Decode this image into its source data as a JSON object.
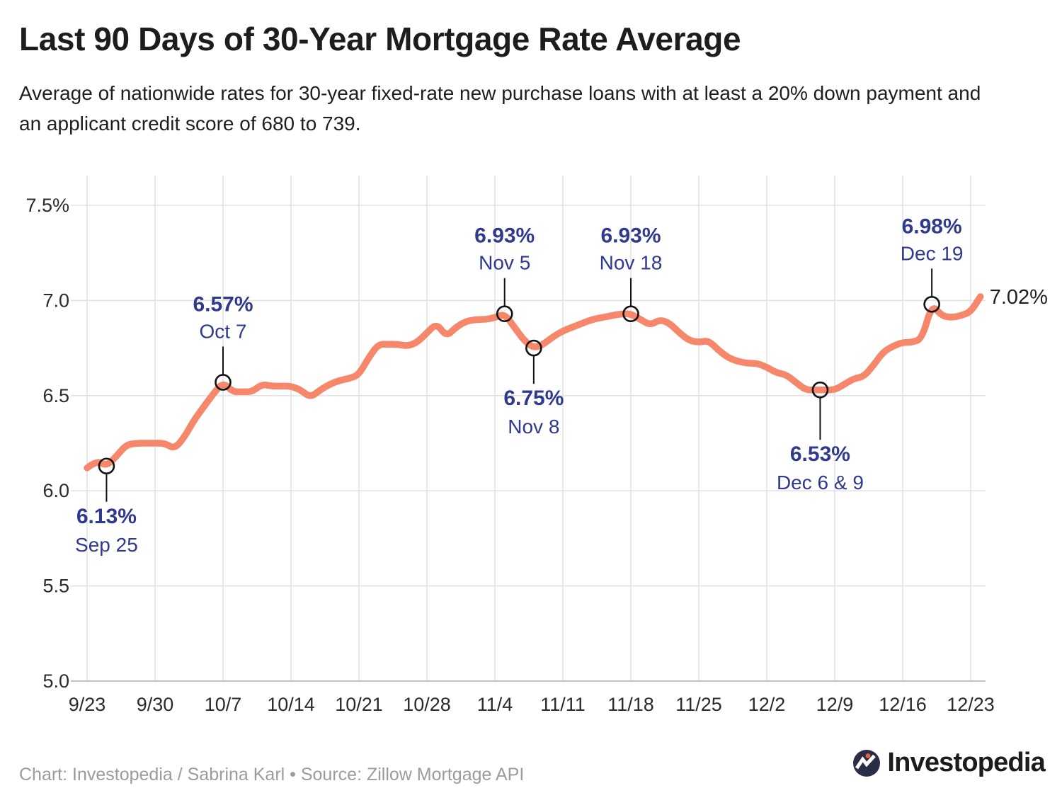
{
  "header": {
    "title": "Last 90 Days of 30-Year Mortgage Rate Average",
    "subtitle": "Average of nationwide rates for 30-year fixed-rate new purchase loans with at least a 20% down payment and an applicant credit score of 680 to 739."
  },
  "chart_data": {
    "type": "line",
    "title": "Last 90 Days of 30-Year Mortgage Rate Average",
    "unit": "%",
    "ylim": [
      5.0,
      7.5
    ],
    "grid": true,
    "y_ticks": [
      {
        "value": 5.0,
        "label": "5.0"
      },
      {
        "value": 5.5,
        "label": "5.5"
      },
      {
        "value": 6.0,
        "label": "6.0"
      },
      {
        "value": 6.5,
        "label": "6.5"
      },
      {
        "value": 7.0,
        "label": "7.0"
      },
      {
        "value": 7.5,
        "label": "7.5%"
      }
    ],
    "x_ticks": [
      "9/23",
      "9/30",
      "10/7",
      "10/14",
      "10/21",
      "10/28",
      "11/4",
      "11/11",
      "11/18",
      "11/25",
      "12/2",
      "12/9",
      "12/16",
      "12/23"
    ],
    "series": [
      {
        "name": "30-year mortgage rate average",
        "color": "#F6876B",
        "dates": [
          "9/23",
          "9/24",
          "9/25",
          "9/26",
          "9/27",
          "9/28",
          "9/29",
          "9/30",
          "10/1",
          "10/2",
          "10/3",
          "10/4",
          "10/5",
          "10/6",
          "10/7",
          "10/8",
          "10/9",
          "10/10",
          "10/11",
          "10/12",
          "10/13",
          "10/14",
          "10/15",
          "10/16",
          "10/17",
          "10/18",
          "10/19",
          "10/20",
          "10/21",
          "10/22",
          "10/23",
          "10/24",
          "10/25",
          "10/26",
          "10/27",
          "10/28",
          "10/29",
          "10/30",
          "10/31",
          "11/1",
          "11/2",
          "11/3",
          "11/4",
          "11/5",
          "11/6",
          "11/7",
          "11/8",
          "11/9",
          "11/10",
          "11/11",
          "11/12",
          "11/13",
          "11/14",
          "11/15",
          "11/16",
          "11/17",
          "11/18",
          "11/19",
          "11/20",
          "11/21",
          "11/22",
          "11/23",
          "11/24",
          "11/25",
          "11/26",
          "11/27",
          "11/28",
          "11/29",
          "11/30",
          "12/1",
          "12/2",
          "12/3",
          "12/4",
          "12/5",
          "12/6",
          "12/7",
          "12/8",
          "12/9",
          "12/10",
          "12/11",
          "12/12",
          "12/13",
          "12/14",
          "12/15",
          "12/16",
          "12/17",
          "12/18",
          "12/19",
          "12/20",
          "12/21",
          "12/22",
          "12/23",
          "12/24"
        ],
        "values": [
          6.12,
          6.16,
          6.13,
          6.18,
          6.24,
          6.25,
          6.25,
          6.25,
          6.25,
          6.22,
          6.28,
          6.37,
          6.44,
          6.51,
          6.57,
          6.52,
          6.52,
          6.52,
          6.56,
          6.55,
          6.55,
          6.55,
          6.53,
          6.49,
          6.53,
          6.56,
          6.58,
          6.59,
          6.61,
          6.7,
          6.77,
          6.77,
          6.77,
          6.76,
          6.78,
          6.83,
          6.88,
          6.81,
          6.86,
          6.89,
          6.9,
          6.9,
          6.91,
          6.93,
          6.86,
          6.79,
          6.75,
          6.77,
          6.81,
          6.84,
          6.86,
          6.88,
          6.9,
          6.91,
          6.92,
          6.93,
          6.93,
          6.9,
          6.87,
          6.9,
          6.88,
          6.83,
          6.79,
          6.78,
          6.79,
          6.74,
          6.7,
          6.68,
          6.67,
          6.67,
          6.65,
          6.62,
          6.61,
          6.57,
          6.53,
          6.53,
          6.53,
          6.53,
          6.56,
          6.59,
          6.6,
          6.66,
          6.73,
          6.76,
          6.78,
          6.78,
          6.8,
          6.98,
          6.92,
          6.91,
          6.92,
          6.94,
          7.02
        ]
      }
    ],
    "annotations": [
      {
        "value_label": "6.13%",
        "date_label": "Sep 25",
        "dates": [
          "9/25"
        ],
        "value": 6.13,
        "position": "below"
      },
      {
        "value_label": "6.57%",
        "date_label": "Oct 7",
        "dates": [
          "10/7"
        ],
        "value": 6.57,
        "position": "above"
      },
      {
        "value_label": "6.93%",
        "date_label": "Nov 5",
        "dates": [
          "11/5"
        ],
        "value": 6.93,
        "position": "above"
      },
      {
        "value_label": "6.75%",
        "date_label": "Nov 8",
        "dates": [
          "11/8"
        ],
        "value": 6.75,
        "position": "below"
      },
      {
        "value_label": "6.93%",
        "date_label": "Nov 18",
        "dates": [
          "11/18"
        ],
        "value": 6.93,
        "position": "above"
      },
      {
        "value_label": "6.53%",
        "date_label": "Dec 6 & 9",
        "dates": [
          "12/6",
          "12/9"
        ],
        "value": 6.53,
        "position": "below"
      },
      {
        "value_label": "6.98%",
        "date_label": "Dec 19",
        "dates": [
          "12/19"
        ],
        "value": 6.98,
        "position": "above"
      }
    ],
    "end_label": "7.02%",
    "colors": {
      "line": "#F6876B",
      "annotation_text": "#2F3A8F",
      "marker_stroke": "#111111",
      "grid": "#E3E3E3",
      "axis": "#C2C2C2",
      "axis_label": "#2b2b2b",
      "end_label": "#1f1f1f"
    },
    "legend": null
  },
  "footer": {
    "credit": "Chart: Investopedia / Sabrina Karl • Source: Zillow Mortgage API"
  },
  "logo": {
    "wordmark": "Investopedia"
  }
}
